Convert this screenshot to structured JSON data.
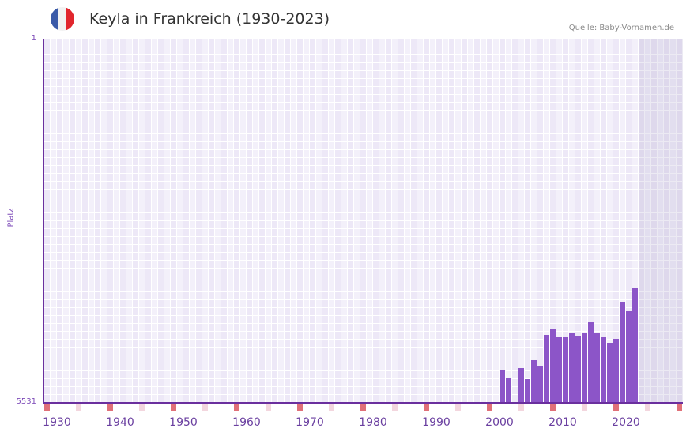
{
  "header": {
    "title": "Keyla in Frankreich (1930-2023)",
    "source": "Quelle: Baby-Vornamen.de",
    "flag_colors": [
      "#3a5aa8",
      "#f2f2f2",
      "#e1262d"
    ]
  },
  "colors": {
    "bar": "#8c55c8",
    "axis": "#6a2f9e",
    "cell_a": "#ede8f7",
    "cell_b": "#f3f0fa",
    "marker_major": "#e07078",
    "marker_minor": "#f3d6de"
  },
  "chart_data": {
    "type": "bar",
    "title": "Keyla in Frankreich (1930-2023)",
    "xlabel": "",
    "ylabel": "Platz",
    "y_inverted": true,
    "ylim": [
      5531,
      1
    ],
    "y_ticks": [
      "1",
      "5531"
    ],
    "x_ticks": [
      "1930",
      "1940",
      "1950",
      "1960",
      "1970",
      "1980",
      "1990",
      "2000",
      "2010",
      "2020"
    ],
    "xlim": [
      1930,
      2030
    ],
    "grid": true,
    "legend": null,
    "future_shaded_from": 2024,
    "categories": [
      2002,
      2003,
      2004,
      2005,
      2006,
      2007,
      2008,
      2009,
      2010,
      2011,
      2012,
      2013,
      2014,
      2015,
      2016,
      2017,
      2018,
      2019,
      2020,
      2021,
      2022,
      2023
    ],
    "values": [
      5038,
      5146,
      null,
      5002,
      5170,
      4882,
      4978,
      4497,
      4401,
      4533,
      4533,
      4461,
      4521,
      4461,
      4305,
      4473,
      4533,
      4617,
      4557,
      3992,
      4136,
      3775
    ]
  }
}
